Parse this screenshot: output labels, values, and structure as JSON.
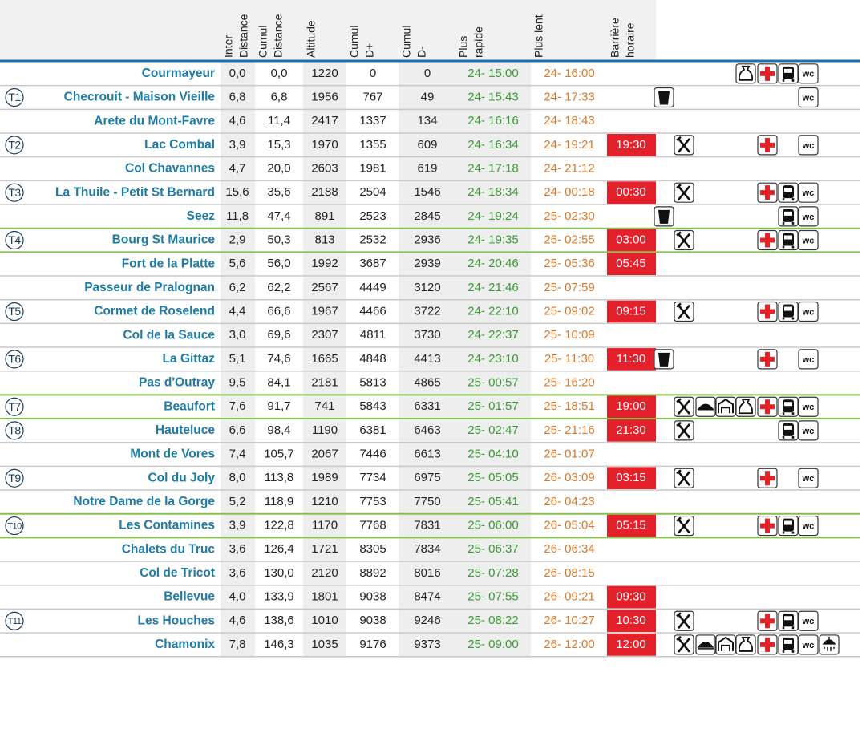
{
  "table": {
    "columns": [
      [
        "Inter",
        "Distance"
      ],
      [
        "Cumul",
        "Distance"
      ],
      [
        "Altitude"
      ],
      [
        "Cumul",
        "D+"
      ],
      [
        "Cumul",
        "D-"
      ],
      [
        "Plus",
        "rapide"
      ],
      [
        "Plus lent"
      ],
      [
        "Barrière",
        "horaire"
      ]
    ],
    "wc_label": "wc",
    "rows": [
      {
        "name": "Courmayeur",
        "inter": "0,0",
        "cumul": "0,0",
        "alt": "1220",
        "dplus": "0",
        "dminus": "0",
        "fast": "24- 15:00",
        "slow": "24- 16:00"
      },
      {
        "tag": "T1",
        "name": "Checrouit - Maison Vieille",
        "inter": "6,8",
        "cumul": "6,8",
        "alt": "1956",
        "dplus": "767",
        "dminus": "49",
        "fast": "24- 15:43",
        "slow": "24- 17:33"
      },
      {
        "name": "Arete du Mont-Favre",
        "inter": "4,6",
        "cumul": "11,4",
        "alt": "2417",
        "dplus": "1337",
        "dminus": "134",
        "fast": "24- 16:16",
        "slow": "24- 18:43"
      },
      {
        "tag": "T2",
        "name": "Lac Combal",
        "inter": "3,9",
        "cumul": "15,3",
        "alt": "1970",
        "dplus": "1355",
        "dminus": "609",
        "fast": "24- 16:34",
        "slow": "24- 19:21",
        "barrier": "19:30"
      },
      {
        "name": "Col Chavannes",
        "inter": "4,7",
        "cumul": "20,0",
        "alt": "2603",
        "dplus": "1981",
        "dminus": "619",
        "fast": "24- 17:18",
        "slow": "24- 21:12"
      },
      {
        "tag": "T3",
        "name": "La Thuile -  Petit St Bernard",
        "inter": "15,6",
        "cumul": "35,6",
        "alt": "2188",
        "dplus": "2504",
        "dminus": "1546",
        "fast": "24- 18:34",
        "slow": "24- 00:18",
        "barrier": "00:30"
      },
      {
        "name": "Seez",
        "inter": "11,8",
        "cumul": "47,4",
        "alt": "891",
        "dplus": "2523",
        "dminus": "2845",
        "fast": "24- 19:24",
        "slow": "25- 02:30"
      },
      {
        "tag": "T4",
        "name": "Bourg St Maurice",
        "inter": "2,9",
        "cumul": "50,3",
        "alt": "813",
        "dplus": "2532",
        "dminus": "2936",
        "fast": "24- 19:35",
        "slow": "25- 02:55",
        "barrier": "03:00"
      },
      {
        "name": "Fort de la Platte",
        "inter": "5,6",
        "cumul": "56,0",
        "alt": "1992",
        "dplus": "3687",
        "dminus": "2939",
        "fast": "24- 20:46",
        "slow": "25- 05:36",
        "barrier": "05:45"
      },
      {
        "name": "Passeur de Pralognan",
        "inter": "6,2",
        "cumul": "62,2",
        "alt": "2567",
        "dplus": "4449",
        "dminus": "3120",
        "fast": "24- 21:46",
        "slow": "25- 07:59"
      },
      {
        "tag": "T5",
        "name": "Cormet de Roselend",
        "inter": "4,4",
        "cumul": "66,6",
        "alt": "1967",
        "dplus": "4466",
        "dminus": "3722",
        "fast": "24- 22:10",
        "slow": "25- 09:02",
        "barrier": "09:15"
      },
      {
        "name": "Col de la Sauce",
        "inter": "3,0",
        "cumul": "69,6",
        "alt": "2307",
        "dplus": "4811",
        "dminus": "3730",
        "fast": "24- 22:37",
        "slow": "25- 10:09"
      },
      {
        "tag": "T6",
        "name": "La Gittaz",
        "inter": "5,1",
        "cumul": "74,6",
        "alt": "1665",
        "dplus": "4848",
        "dminus": "4413",
        "fast": "24- 23:10",
        "slow": "25- 11:30",
        "barrier": "11:30"
      },
      {
        "name": "Pas d'Outray",
        "inter": "9,5",
        "cumul": "84,1",
        "alt": "2181",
        "dplus": "5813",
        "dminus": "4865",
        "fast": "25- 00:57",
        "slow": "25- 16:20"
      },
      {
        "tag": "T7",
        "name": "Beaufort",
        "inter": "7,6",
        "cumul": "91,7",
        "alt": "741",
        "dplus": "5843",
        "dminus": "6331",
        "fast": "25- 01:57",
        "slow": "25- 18:51",
        "barrier": "19:00"
      },
      {
        "tag": "T8",
        "name": "Hauteluce",
        "inter": "6,6",
        "cumul": "98,4",
        "alt": "1190",
        "dplus": "6381",
        "dminus": "6463",
        "fast": "25- 02:47",
        "slow": "25- 21:16",
        "barrier": "21:30"
      },
      {
        "name": "Mont de Vores",
        "inter": "7,4",
        "cumul": "105,7",
        "alt": "2067",
        "dplus": "7446",
        "dminus": "6613",
        "fast": "25- 04:10",
        "slow": "26- 01:07"
      },
      {
        "tag": "T9",
        "name": "Col du Joly",
        "inter": "8,0",
        "cumul": "113,8",
        "alt": "1989",
        "dplus": "7734",
        "dminus": "6975",
        "fast": "25- 05:05",
        "slow": "26- 03:09",
        "barrier": "03:15"
      },
      {
        "name": "Notre Dame de la Gorge",
        "inter": "5,2",
        "cumul": "118,9",
        "alt": "1210",
        "dplus": "7753",
        "dminus": "7750",
        "fast": "25- 05:41",
        "slow": "26- 04:23"
      },
      {
        "tag": "T10",
        "name": "Les Contamines",
        "inter": "3,9",
        "cumul": "122,8",
        "alt": "1170",
        "dplus": "7768",
        "dminus": "7831",
        "fast": "25- 06:00",
        "slow": "26- 05:04",
        "barrier": "05:15"
      },
      {
        "name": "Chalets du Truc",
        "inter": "3,6",
        "cumul": "126,4",
        "alt": "1721",
        "dplus": "8305",
        "dminus": "7834",
        "fast": "25- 06:37",
        "slow": "26- 06:34"
      },
      {
        "name": "Col de Tricot",
        "inter": "3,6",
        "cumul": "130,0",
        "alt": "2120",
        "dplus": "8892",
        "dminus": "8016",
        "fast": "25- 07:28",
        "slow": "26- 08:15"
      },
      {
        "name": "Bellevue",
        "inter": "4,0",
        "cumul": "133,9",
        "alt": "1801",
        "dplus": "9038",
        "dminus": "8474",
        "fast": "25- 07:55",
        "slow": "26- 09:21",
        "barrier": "09:30"
      },
      {
        "tag": "T11",
        "name": "Les Houches",
        "inter": "4,6",
        "cumul": "138,6",
        "alt": "1010",
        "dplus": "9038",
        "dminus": "9246",
        "fast": "25- 08:22",
        "slow": "26- 10:27",
        "barrier": "10:30"
      },
      {
        "name": "Chamonix",
        "inter": "7,8",
        "cumul": "146,3",
        "alt": "1035",
        "dplus": "9176",
        "dminus": "9373",
        "fast": "25- 09:00",
        "slow": "26- 12:00",
        "barrier": "12:00"
      }
    ]
  }
}
